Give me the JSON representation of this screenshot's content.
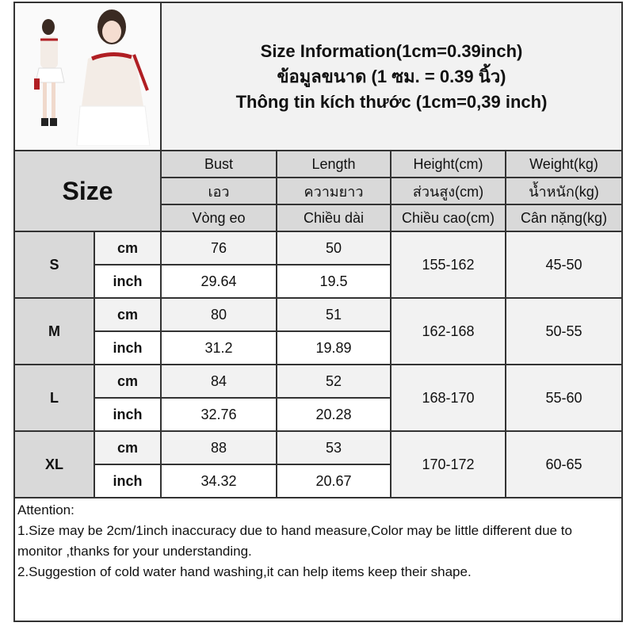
{
  "title_lines": [
    "Size Information(1cm=0.39inch)",
    "ข้อมูลขนาด (1 ซม. = 0.39 นิ้ว)",
    "Thông tin kích thước (1cm=0,39 inch)"
  ],
  "size_header": "Size",
  "columns": [
    {
      "en": "Bust",
      "th": "เอว",
      "vi": "Vòng eo"
    },
    {
      "en": "Length",
      "th": "ความยาว",
      "vi": "Chiều dài"
    },
    {
      "en": "Height(cm)",
      "th": "ส่วนสูง(cm)",
      "vi": "Chiều cao(cm)"
    },
    {
      "en": "Weight(kg)",
      "th": "น้ำหนัก(kg)",
      "vi": "Cân nặng(kg)"
    }
  ],
  "units": {
    "cm": "cm",
    "inch": "inch"
  },
  "rows": [
    {
      "size": "S",
      "cm": [
        "76",
        "50"
      ],
      "inch": [
        "29.64",
        "19.5"
      ],
      "height": "155-162",
      "weight": "45-50"
    },
    {
      "size": "M",
      "cm": [
        "80",
        "51"
      ],
      "inch": [
        "31.2",
        "19.89"
      ],
      "height": "162-168",
      "weight": "50-55"
    },
    {
      "size": "L",
      "cm": [
        "84",
        "52"
      ],
      "inch": [
        "32.76",
        "20.28"
      ],
      "height": "168-170",
      "weight": "55-60"
    },
    {
      "size": "XL",
      "cm": [
        "88",
        "53"
      ],
      "inch": [
        "34.32",
        "20.67"
      ],
      "height": "170-172",
      "weight": "60-65"
    }
  ],
  "attention": {
    "heading": "Attention:",
    "lines": [
      "1.Size may be 2cm/1inch inaccuracy due to hand measure,Color may be little different due to monitor ,thanks for your understanding.",
      "2.Suggestion of cold water hand washing,it can help items keep their shape."
    ]
  },
  "colors": {
    "header_gray": "#d9d9d9",
    "light_gray": "#f2f2f2",
    "accent_red": "#b01e23"
  }
}
